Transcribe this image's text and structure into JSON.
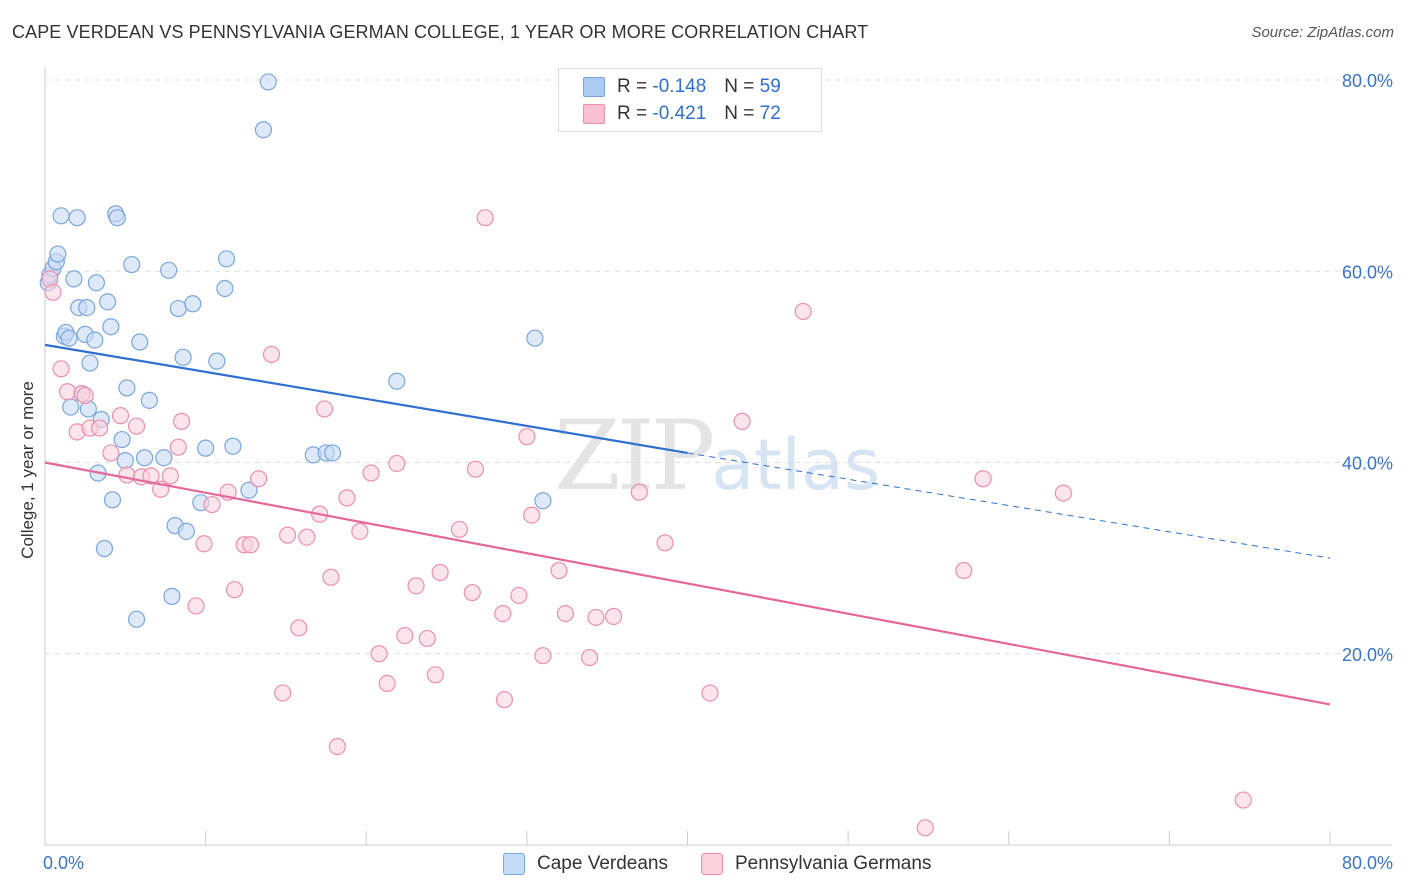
{
  "title": "CAPE VERDEAN VS PENNSYLVANIA GERMAN COLLEGE, 1 YEAR OR MORE CORRELATION CHART",
  "source": "Source: ZipAtlas.com",
  "watermark": {
    "zip": "ZIP",
    "atlas": "atlas"
  },
  "legend": {
    "r_label": "R =",
    "n_label": "N =",
    "rows": [
      {
        "r": "-0.148",
        "n": "59",
        "color": "#aecbf3"
      },
      {
        "r": "-0.421",
        "n": "72",
        "color": "#f8c0d0"
      }
    ]
  },
  "colors": {
    "blue_fill": "#c6dbf5",
    "blue_stroke": "#7aa6dc",
    "blue_line": "#2f6fd0",
    "pink_fill": "#f9d2de",
    "pink_stroke": "#eb8fab",
    "pink_line": "#e4679a",
    "tick_text": "#3a74c9",
    "grid": "#dddddd"
  },
  "chart_data": {
    "type": "scatter",
    "title": "CAPE VERDEAN VS PENNSYLVANIA GERMAN COLLEGE, 1 YEAR OR MORE CORRELATION CHART",
    "xlabel": "",
    "ylabel": "College, 1 year or more",
    "xlim": [
      0,
      80
    ],
    "ylim": [
      0,
      80
    ],
    "x_tick_labels": [
      {
        "value": 0,
        "label": "0.0%"
      },
      {
        "value": 80,
        "label": "80.0%"
      }
    ],
    "y_tick_labels": [
      {
        "value": 20,
        "label": "20.0%"
      },
      {
        "value": 40,
        "label": "40.0%"
      },
      {
        "value": 60,
        "label": "60.0%"
      },
      {
        "value": 80,
        "label": "80.0%"
      }
    ],
    "series": [
      {
        "name": "Cape Verdeans",
        "r": -0.148,
        "n": 59,
        "trend": {
          "x0": 0,
          "y0": 52.3,
          "x1": 40,
          "y1": 41.0,
          "dash_x1": 80,
          "dash_y1": 30.0
        },
        "points": [
          [
            0.2,
            58.8
          ],
          [
            0.3,
            59.6
          ],
          [
            0.5,
            60.3
          ],
          [
            0.7,
            61.0
          ],
          [
            0.8,
            61.8
          ],
          [
            1.0,
            65.8
          ],
          [
            1.2,
            53.2
          ],
          [
            1.3,
            53.6
          ],
          [
            1.5,
            53.0
          ],
          [
            1.6,
            45.8
          ],
          [
            1.8,
            59.2
          ],
          [
            2.0,
            65.6
          ],
          [
            2.1,
            56.2
          ],
          [
            2.3,
            47.2
          ],
          [
            2.5,
            53.4
          ],
          [
            2.6,
            56.2
          ],
          [
            2.7,
            45.6
          ],
          [
            2.8,
            50.4
          ],
          [
            3.1,
            52.8
          ],
          [
            3.2,
            58.8
          ],
          [
            3.3,
            38.9
          ],
          [
            3.5,
            44.5
          ],
          [
            3.7,
            31.0
          ],
          [
            3.9,
            56.8
          ],
          [
            4.1,
            54.2
          ],
          [
            4.2,
            36.1
          ],
          [
            4.4,
            66.0
          ],
          [
            4.5,
            65.6
          ],
          [
            4.8,
            42.4
          ],
          [
            5.0,
            40.2
          ],
          [
            5.1,
            47.8
          ],
          [
            5.4,
            60.7
          ],
          [
            5.7,
            23.6
          ],
          [
            5.9,
            52.6
          ],
          [
            6.2,
            40.5
          ],
          [
            6.5,
            46.5
          ],
          [
            7.4,
            40.5
          ],
          [
            7.7,
            60.1
          ],
          [
            7.9,
            26.0
          ],
          [
            8.1,
            33.4
          ],
          [
            8.3,
            56.1
          ],
          [
            8.6,
            51.0
          ],
          [
            8.8,
            32.8
          ],
          [
            9.2,
            56.6
          ],
          [
            9.7,
            35.8
          ],
          [
            10.0,
            41.5
          ],
          [
            10.7,
            50.6
          ],
          [
            11.2,
            58.2
          ],
          [
            11.3,
            61.3
          ],
          [
            11.7,
            41.7
          ],
          [
            12.7,
            37.1
          ],
          [
            13.6,
            74.8
          ],
          [
            13.9,
            79.8
          ],
          [
            16.7,
            40.8
          ],
          [
            17.5,
            41.0
          ],
          [
            17.9,
            41.0
          ],
          [
            21.9,
            48.5
          ],
          [
            30.5,
            53.0
          ],
          [
            31.0,
            36.0
          ]
        ]
      },
      {
        "name": "Pennsylvania Germans",
        "r": -0.421,
        "n": 72,
        "trend": {
          "x0": 0,
          "y0": 40.0,
          "x1": 80,
          "y1": 14.7
        },
        "points": [
          [
            0.3,
            59.2
          ],
          [
            0.5,
            57.8
          ],
          [
            1.0,
            49.8
          ],
          [
            1.4,
            47.4
          ],
          [
            2.0,
            43.2
          ],
          [
            2.3,
            47.2
          ],
          [
            2.5,
            47.0
          ],
          [
            2.8,
            43.6
          ],
          [
            3.4,
            43.6
          ],
          [
            4.1,
            41.0
          ],
          [
            4.7,
            44.9
          ],
          [
            5.1,
            38.7
          ],
          [
            5.7,
            43.8
          ],
          [
            6.0,
            38.5
          ],
          [
            6.6,
            38.6
          ],
          [
            7.2,
            37.2
          ],
          [
            7.8,
            38.6
          ],
          [
            8.3,
            41.6
          ],
          [
            8.5,
            44.3
          ],
          [
            9.4,
            25.0
          ],
          [
            9.9,
            31.5
          ],
          [
            10.4,
            35.6
          ],
          [
            11.4,
            36.9
          ],
          [
            11.8,
            26.7
          ],
          [
            12.4,
            31.4
          ],
          [
            12.8,
            31.4
          ],
          [
            13.3,
            38.3
          ],
          [
            14.1,
            51.3
          ],
          [
            14.8,
            15.9
          ],
          [
            15.1,
            32.4
          ],
          [
            15.8,
            22.7
          ],
          [
            16.3,
            32.2
          ],
          [
            17.1,
            34.6
          ],
          [
            17.4,
            45.6
          ],
          [
            17.8,
            28.0
          ],
          [
            18.2,
            10.3
          ],
          [
            18.8,
            36.3
          ],
          [
            19.6,
            32.8
          ],
          [
            20.3,
            38.9
          ],
          [
            20.8,
            20.0
          ],
          [
            21.3,
            16.9
          ],
          [
            21.9,
            39.9
          ],
          [
            22.4,
            21.9
          ],
          [
            23.1,
            27.1
          ],
          [
            23.8,
            21.6
          ],
          [
            24.3,
            17.8
          ],
          [
            24.6,
            28.5
          ],
          [
            25.8,
            33.0
          ],
          [
            26.6,
            26.4
          ],
          [
            26.8,
            39.3
          ],
          [
            27.4,
            65.6
          ],
          [
            28.5,
            24.2
          ],
          [
            28.6,
            15.2
          ],
          [
            29.5,
            26.1
          ],
          [
            30.0,
            42.7
          ],
          [
            30.3,
            34.5
          ],
          [
            31.0,
            19.8
          ],
          [
            32.0,
            28.7
          ],
          [
            32.4,
            24.2
          ],
          [
            33.9,
            19.6
          ],
          [
            34.3,
            23.8
          ],
          [
            35.4,
            23.9
          ],
          [
            37.0,
            36.9
          ],
          [
            38.6,
            31.6
          ],
          [
            41.4,
            15.9
          ],
          [
            43.4,
            44.3
          ],
          [
            47.2,
            55.8
          ],
          [
            54.8,
            1.8
          ],
          [
            57.2,
            28.7
          ],
          [
            58.4,
            38.3
          ],
          [
            63.4,
            36.8
          ],
          [
            74.6,
            4.7
          ]
        ]
      }
    ]
  }
}
